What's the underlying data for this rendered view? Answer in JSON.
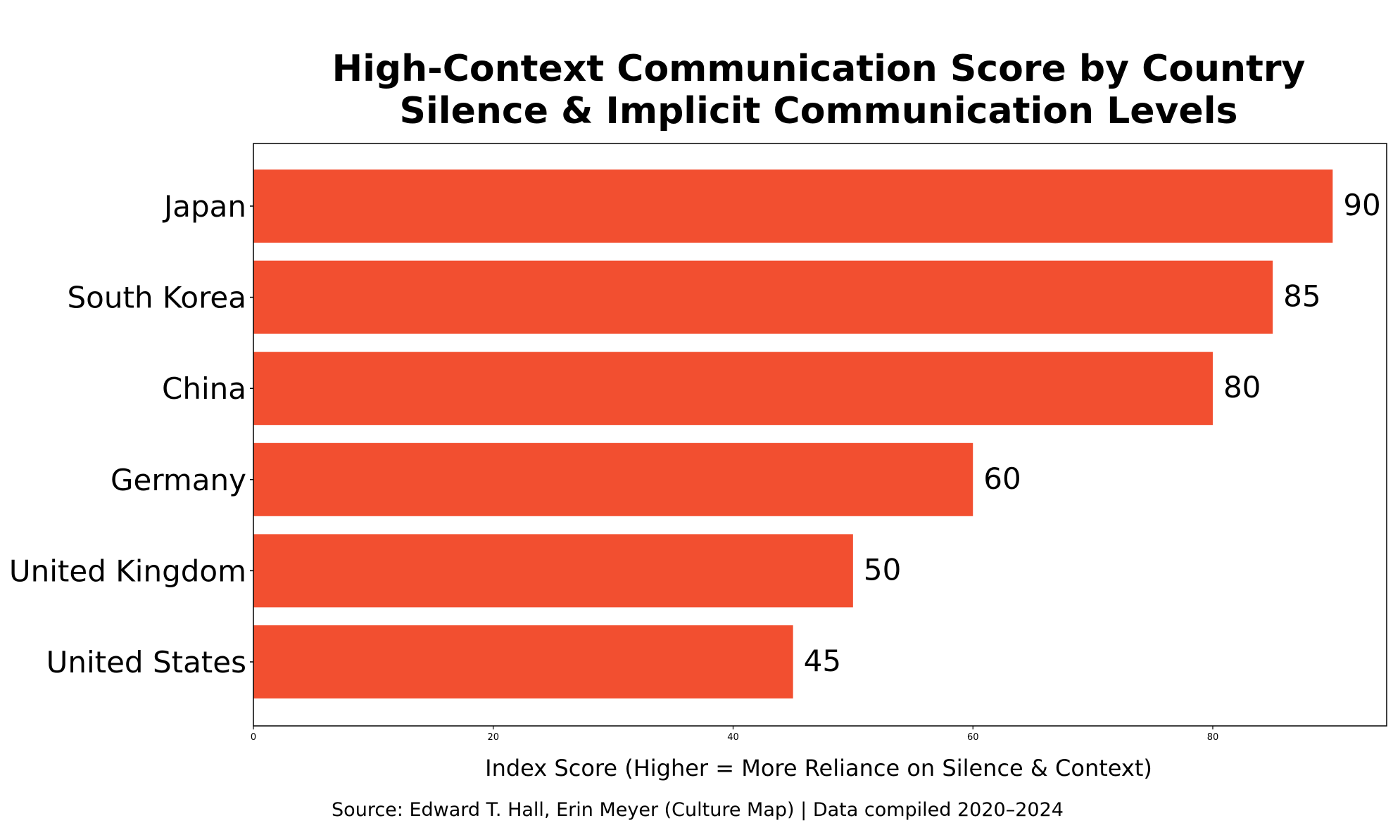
{
  "chart_data": {
    "type": "bar",
    "orientation": "horizontal",
    "title": "High-Context Communication Score by Country",
    "subtitle": "Silence & Implicit Communication Levels",
    "categories": [
      "Japan",
      "South Korea",
      "China",
      "Germany",
      "United Kingdom",
      "United States"
    ],
    "values": [
      90,
      85,
      80,
      60,
      50,
      45
    ],
    "value_labels": [
      "90",
      "85",
      "80",
      "60",
      "50",
      "45"
    ],
    "xlabel": "Index Score (Higher = More Reliance on Silence & Context)",
    "ylabel": "",
    "xlim": [
      0,
      94.5
    ],
    "x_ticks": [
      "0",
      "20",
      "40",
      "60",
      "80"
    ],
    "grid": false,
    "legend": "none",
    "bar_color": "#F24F30",
    "source": "Source: Edward T. Hall, Erin Meyer (Culture Map) | Data compiled 2020–2024"
  }
}
